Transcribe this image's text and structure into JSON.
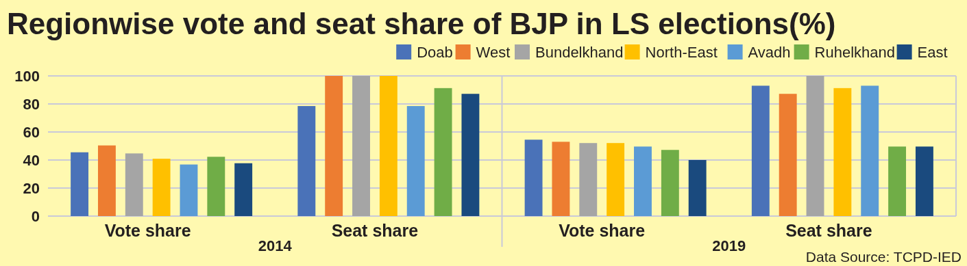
{
  "chart_data": {
    "type": "bar",
    "title": "Regionwise vote and seat share of BJP in LS elections(%)",
    "categories": [
      "Vote share",
      "Seat share",
      "Vote share",
      "Seat share"
    ],
    "series": [
      {
        "name": "Doab",
        "color": "#4a72b8",
        "values": [
          45.5,
          78.5,
          54.5,
          93
        ]
      },
      {
        "name": "West",
        "color": "#ed7d31",
        "values": [
          50.4,
          100,
          53,
          87.2
        ]
      },
      {
        "name": "Bundelkhand",
        "color": "#a5a5a5",
        "values": [
          44.7,
          100,
          52.1,
          100
        ]
      },
      {
        "name": "North-East",
        "color": "#ffc000",
        "values": [
          40.9,
          100,
          52.1,
          91.3
        ]
      },
      {
        "name": "Avadh",
        "color": "#5b9bd5",
        "values": [
          36.8,
          78.5,
          49.6,
          93
        ]
      },
      {
        "name": "Ruhelkhand",
        "color": "#70ad47",
        "values": [
          42.3,
          91.3,
          47.2,
          49.6
        ]
      },
      {
        "name": "East",
        "color": "#1a4a7e",
        "values": [
          37.7,
          87.2,
          40,
          49.6
        ]
      }
    ],
    "ylim": [
      0,
      100
    ],
    "yticks": [
      0,
      20,
      40,
      60,
      80,
      100
    ],
    "grid": "y",
    "legend": "top right",
    "annotations": [
      "2014",
      "2019",
      "Data Source: TCPD-IED"
    ]
  }
}
